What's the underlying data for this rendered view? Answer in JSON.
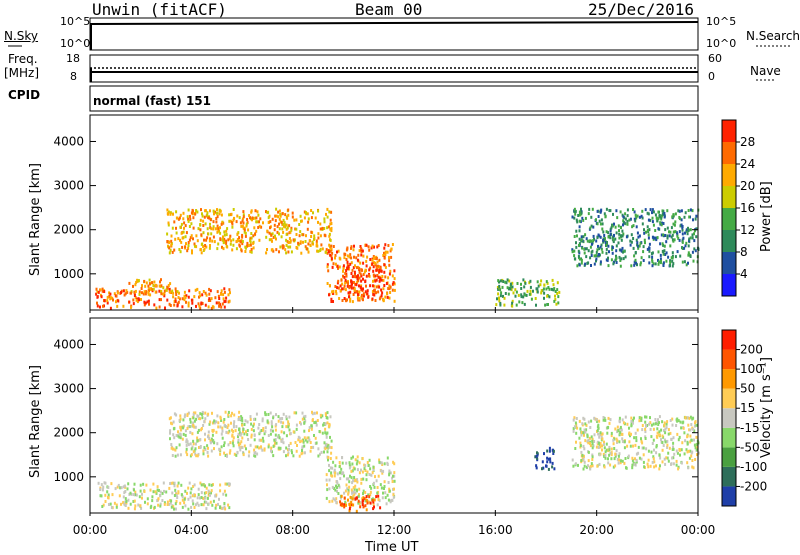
{
  "header": {
    "site": "Unwin (fitACF)",
    "beam": "Beam 00",
    "date": "25/Dec/2016"
  },
  "left_labels": {
    "nsky": "N.Sky",
    "freq": "Freq.",
    "freq_unit": "[MHz]",
    "cpid": "CPID"
  },
  "right_labels": {
    "nsearch": "N.Search",
    "nave": "Nave"
  },
  "mode_text": "normal (fast) 151",
  "noise_axis": {
    "left_top": "10^5",
    "left_bottom": "10^0",
    "right_top": "10^5",
    "right_bottom": "10^0"
  },
  "freq_axis": {
    "left_top": "18",
    "left_bottom": "8",
    "right_top": "60",
    "right_bottom": "0"
  },
  "x_axis": {
    "ticks": [
      "00:00",
      "04:00",
      "08:00",
      "12:00",
      "16:00",
      "20:00",
      "00:00"
    ],
    "label": "Time UT"
  },
  "y_axis": {
    "label": "Slant Range [km]",
    "ticks": [
      "1000",
      "2000",
      "3000",
      "4000"
    ]
  },
  "power_colorbar": {
    "label": "Power [dB]",
    "ticks": [
      "4",
      "8",
      "12",
      "16",
      "20",
      "24",
      "28"
    ]
  },
  "velocity_colorbar": {
    "label": "Velocity [m s⁻¹]",
    "ticks": [
      "200",
      "100",
      "50",
      "15",
      "-15",
      "-50",
      "-100",
      "-200"
    ]
  },
  "chart_data": [
    {
      "type": "heatmap",
      "panel": "power",
      "x_range_hours": [
        0,
        24
      ],
      "y_range_km": [
        180,
        4600
      ],
      "ylabel": "Slant Range [km]",
      "colorbar": "Power [dB]",
      "colors": [
        "#1a1aff",
        "#1f4fa0",
        "#2e8a5a",
        "#44aa44",
        "#cccc00",
        "#ffaa00",
        "#ff6a00",
        "#ff2200"
      ],
      "regions": [
        {
          "t0": 0.2,
          "t1": 5.5,
          "r0": 250,
          "r1": 700,
          "level": 6
        },
        {
          "t0": 1.5,
          "t1": 3.5,
          "r0": 550,
          "r1": 900,
          "level": 5
        },
        {
          "t0": 3.0,
          "t1": 9.5,
          "r0": 1500,
          "r1": 2500,
          "level": 5
        },
        {
          "t0": 9.3,
          "t1": 12.0,
          "r0": 400,
          "r1": 1700,
          "level": 6
        },
        {
          "t0": 10.0,
          "t1": 11.5,
          "r0": 550,
          "r1": 1200,
          "level": 7
        },
        {
          "t0": 16.0,
          "t1": 18.5,
          "r0": 300,
          "r1": 900,
          "level": 3
        },
        {
          "t0": 19.0,
          "t1": 24.0,
          "r0": 1200,
          "r1": 2500,
          "level": 2
        }
      ]
    },
    {
      "type": "heatmap",
      "panel": "velocity",
      "x_range_hours": [
        0,
        24
      ],
      "y_range_km": [
        180,
        4600
      ],
      "ylabel": "Slant Range [km]",
      "colorbar": "Velocity [m s⁻¹]",
      "colors": [
        "#1f3fa8",
        "#2e6e5a",
        "#4aa040",
        "#88d86a",
        "#c8c8c0",
        "#ffcc55",
        "#ff9900",
        "#ff5500",
        "#ff1e00"
      ],
      "regions": [
        {
          "t0": 0.3,
          "t1": 5.5,
          "r0": 300,
          "r1": 900,
          "level": 4
        },
        {
          "t0": 3.0,
          "t1": 9.5,
          "r0": 1500,
          "r1": 2500,
          "level": 4
        },
        {
          "t0": 9.3,
          "t1": 12.0,
          "r0": 400,
          "r1": 1500,
          "level": 4
        },
        {
          "t0": 9.8,
          "t1": 11.5,
          "r0": 250,
          "r1": 600,
          "level": 7
        },
        {
          "t0": 17.5,
          "t1": 18.3,
          "r0": 1200,
          "r1": 1700,
          "level": 0
        },
        {
          "t0": 19.0,
          "t1": 24.0,
          "r0": 1200,
          "r1": 2400,
          "level": 4
        }
      ]
    }
  ]
}
